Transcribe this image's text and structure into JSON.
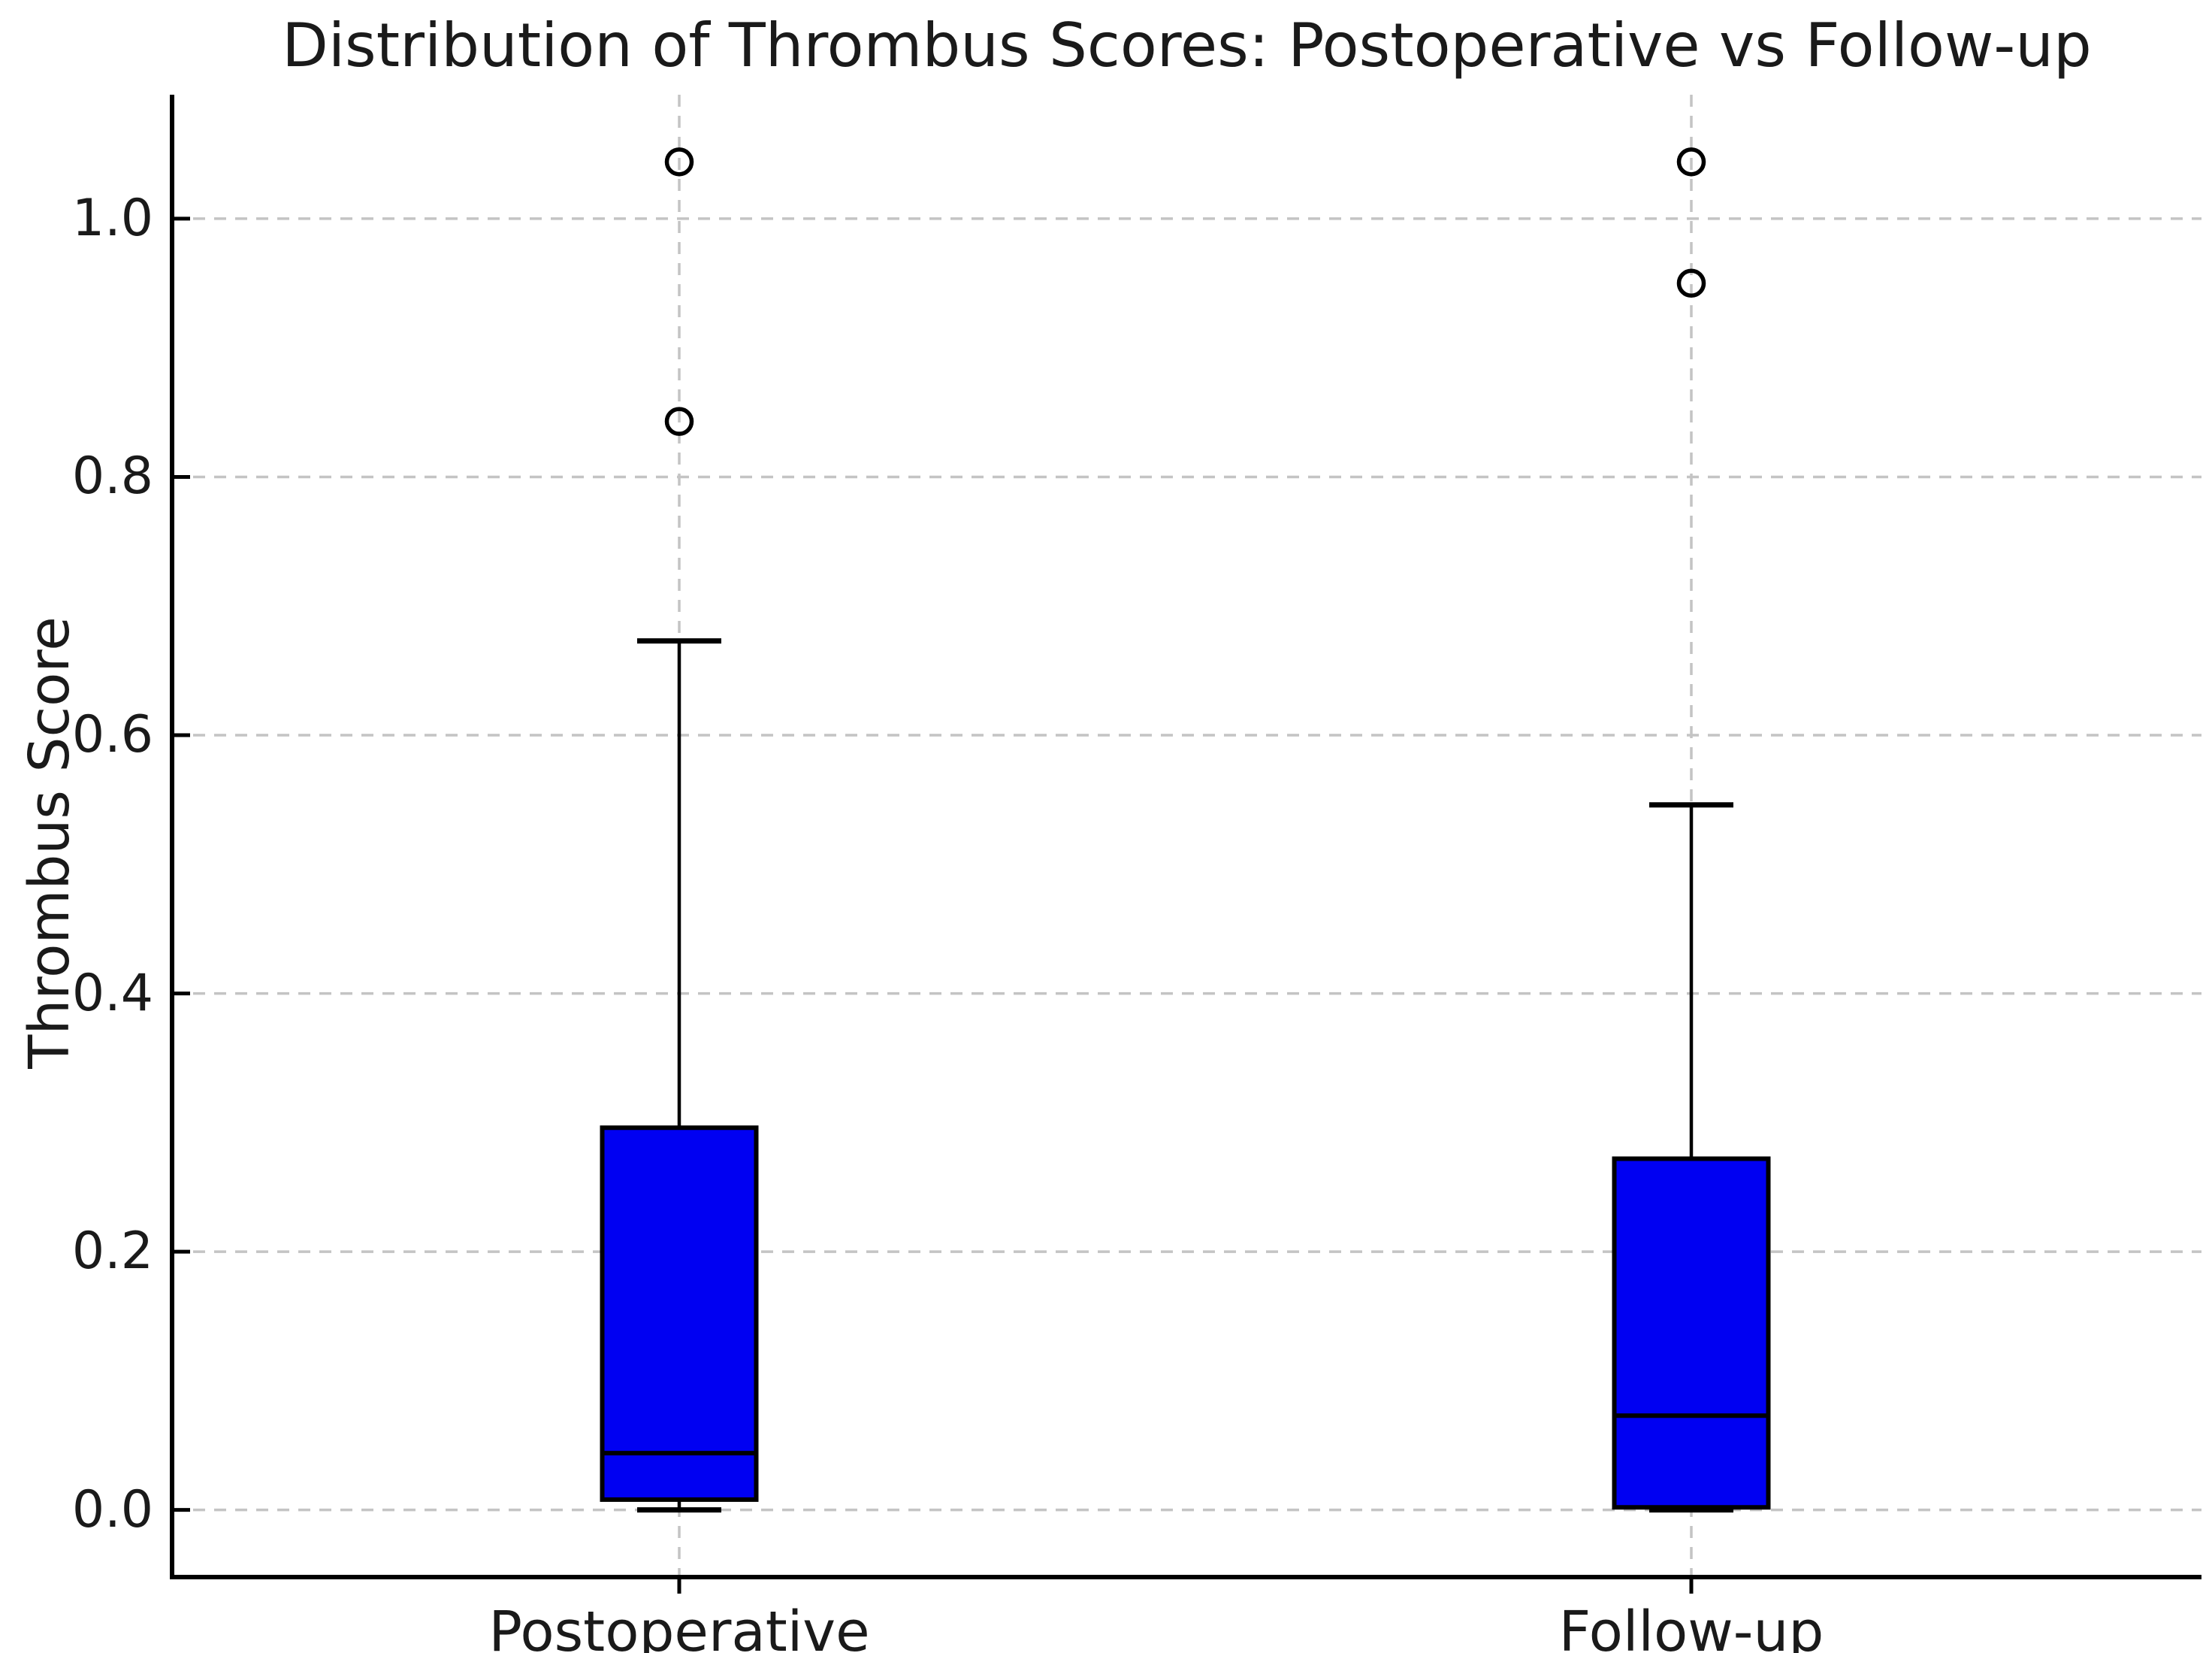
{
  "title": "Distribution of Thrombus Scores: Postoperative vs Follow-up",
  "y_axis": {
    "label": "Thrombus Score",
    "tick_labels": [
      "0.0",
      "0.2",
      "0.4",
      "0.6",
      "0.8",
      "1.0"
    ]
  },
  "x_axis": {
    "categories": [
      "Postoperative",
      "Follow-up"
    ]
  },
  "chart_data": {
    "type": "box",
    "title": "Distribution of Thrombus Scores: Postoperative vs Follow-up",
    "xlabel": "",
    "ylabel": "Thrombus Score",
    "categories": [
      "Postoperative",
      "Follow-up"
    ],
    "series": [
      {
        "name": "Postoperative",
        "whisker_low": 0.0,
        "q1": 0.008,
        "median": 0.044,
        "q3": 0.296,
        "whisker_high": 0.673,
        "outliers": [
          0.843,
          1.044
        ]
      },
      {
        "name": "Follow-up",
        "whisker_low": 0.0,
        "q1": 0.002,
        "median": 0.073,
        "q3": 0.272,
        "whisker_high": 0.546,
        "outliers": [
          0.95,
          1.044
        ]
      }
    ],
    "yticks": [
      0.0,
      0.2,
      0.4,
      0.6,
      0.8,
      1.0
    ],
    "ylim": [
      -0.052,
      1.096
    ],
    "grid": true,
    "legend_position": "none",
    "colors": {
      "box_fill": "#0000f2",
      "box_edge": "#000000",
      "median": "#000000",
      "whisker": "#000000",
      "cap": "#000000",
      "outlier_edge": "#000000",
      "grid": "#c4c4c4",
      "spine": "#000000",
      "text": "#1a1a1a",
      "background": "#ffffff"
    }
  }
}
